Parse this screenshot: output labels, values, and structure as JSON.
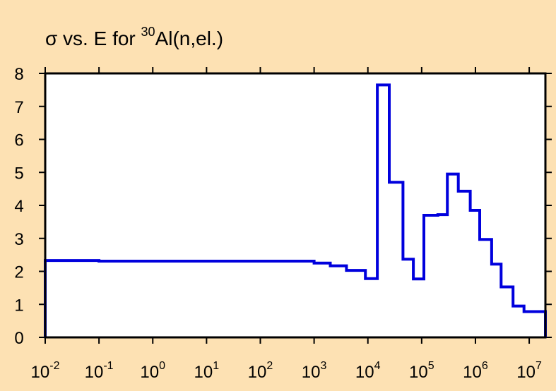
{
  "chart_data": {
    "type": "line",
    "title_symbol": "σ",
    "title_pre": " vs. E for ",
    "title_sup": "30",
    "title_post": "Al(n,el.)",
    "xlabel": "",
    "ylabel": "",
    "x_scale": "log",
    "xlim": [
      0.01,
      20000000
    ],
    "ylim": [
      0,
      8
    ],
    "x_ticks": [
      {
        "base": "10",
        "exp": "-2",
        "value": 0.01
      },
      {
        "base": "10",
        "exp": "-1",
        "value": 0.1
      },
      {
        "base": "10",
        "exp": "0",
        "value": 1
      },
      {
        "base": "10",
        "exp": "1",
        "value": 10
      },
      {
        "base": "10",
        "exp": "2",
        "value": 100
      },
      {
        "base": "10",
        "exp": "3",
        "value": 1000
      },
      {
        "base": "10",
        "exp": "4",
        "value": 10000
      },
      {
        "base": "10",
        "exp": "5",
        "value": 100000
      },
      {
        "base": "10",
        "exp": "6",
        "value": 1000000
      },
      {
        "base": "10",
        "exp": "7",
        "value": 10000000
      }
    ],
    "y_ticks": [
      "0",
      "1",
      "2",
      "3",
      "4",
      "5",
      "6",
      "7",
      "8"
    ],
    "grid": false,
    "colors": {
      "series": "#0000dd",
      "background": "#fde1b3",
      "plot_bg": "#ffffff",
      "axes": "#000000"
    },
    "series": [
      {
        "style": "step",
        "points": [
          [
            0.01,
            0.0
          ],
          [
            0.01,
            2.33
          ],
          [
            0.1,
            2.33
          ],
          [
            0.1,
            2.31
          ],
          [
            1000,
            2.31
          ],
          [
            1000,
            2.25
          ],
          [
            2000,
            2.25
          ],
          [
            2000,
            2.17
          ],
          [
            4000,
            2.17
          ],
          [
            4000,
            2.03
          ],
          [
            9000,
            2.03
          ],
          [
            9000,
            1.78
          ],
          [
            15000,
            1.78
          ],
          [
            15000,
            7.65
          ],
          [
            25000,
            7.65
          ],
          [
            25000,
            4.7
          ],
          [
            45000,
            4.7
          ],
          [
            45000,
            2.37
          ],
          [
            70000,
            2.37
          ],
          [
            70000,
            1.77
          ],
          [
            110000,
            1.77
          ],
          [
            110000,
            3.7
          ],
          [
            200000,
            3.7
          ],
          [
            200000,
            3.72
          ],
          [
            300000,
            3.72
          ],
          [
            300000,
            4.95
          ],
          [
            480000,
            4.95
          ],
          [
            480000,
            4.43
          ],
          [
            800000,
            4.43
          ],
          [
            800000,
            3.85
          ],
          [
            1200000,
            3.85
          ],
          [
            1200000,
            2.97
          ],
          [
            2000000,
            2.97
          ],
          [
            2000000,
            2.22
          ],
          [
            3000000,
            2.22
          ],
          [
            3000000,
            1.53
          ],
          [
            5000000,
            1.53
          ],
          [
            5000000,
            0.95
          ],
          [
            8000000,
            0.95
          ],
          [
            8000000,
            0.78
          ],
          [
            20000000,
            0.78
          ],
          [
            20000000,
            0.0
          ]
        ]
      }
    ]
  }
}
